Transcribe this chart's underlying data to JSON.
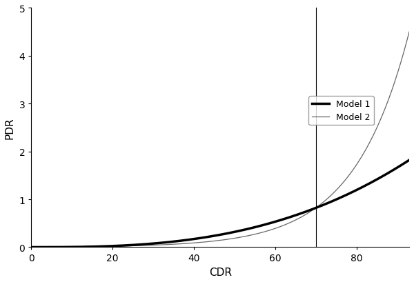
{
  "title": "",
  "xlabel": "CDR",
  "ylabel": "PDR",
  "xlim": [
    0,
    93
  ],
  "ylim": [
    0,
    5
  ],
  "xticks": [
    0,
    20,
    40,
    60,
    80
  ],
  "yticks": [
    0,
    1,
    2,
    3,
    4,
    5
  ],
  "vline_x": 70,
  "vline_color": "#000000",
  "vline_lw": 0.8,
  "model1_color": "#000000",
  "model1_lw": 2.5,
  "model1_label": "Model 1",
  "model2_color": "#666666",
  "model2_lw": 0.9,
  "model2_label": "Model 2",
  "background_color": "#ffffff",
  "figsize": [
    6.0,
    4.1
  ],
  "dpi": 100,
  "cdr_max": 93,
  "model1_a": 2.854,
  "model2_b_power": 6.5
}
